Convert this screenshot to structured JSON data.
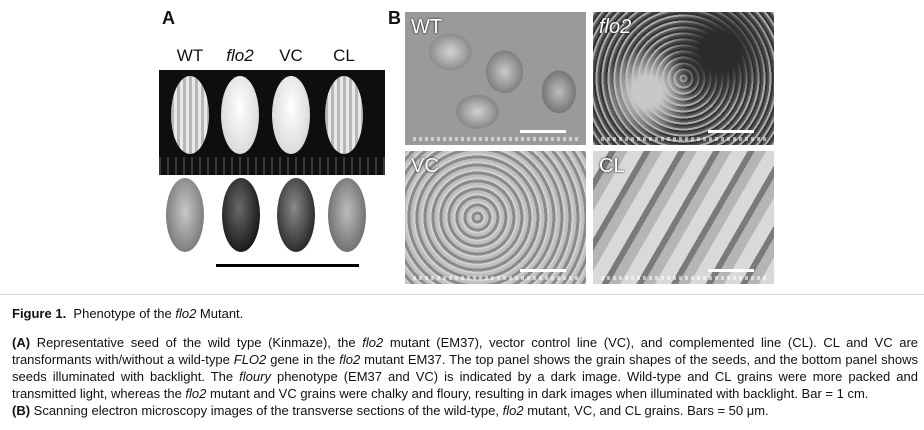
{
  "panel_a": {
    "letter": "A",
    "column_labels": [
      "WT",
      "flo2",
      "VC",
      "CL"
    ]
  },
  "panel_b": {
    "letter": "B",
    "image_labels": [
      "WT",
      "flo2",
      "VC",
      "CL"
    ]
  },
  "figure": {
    "title_prefix": "Figure 1.",
    "title_text": "Phenotype of the ",
    "title_italic": "flo2",
    "title_suffix": " Mutant."
  },
  "caption_a": {
    "label": "(A)",
    "s1": " Representative seed of the wild type (Kinmaze), the ",
    "s1_it": "flo2",
    "s2": " mutant (EM37), vector control line (VC), and complemented line (CL). CL and VC are transformants with/without a wild-type ",
    "s2_it": "FLO2",
    "s3": " gene in the ",
    "s3_it": "flo2",
    "s4": " mutant EM37. The top panel shows the grain shapes of the seeds, and the bottom panel shows seeds illuminated with backlight. The ",
    "s4_it": "floury",
    "s5": " phenotype (EM37 and VC) is indicated by a dark image. Wild-type and CL grains were more packed and transmitted light, whereas the ",
    "s5_it": "flo2",
    "s6": " mutant and VC grains were chalky and floury, resulting in dark images when illuminated with backlight. Bar = 1 cm."
  },
  "caption_b": {
    "label": "(B)",
    "s1": " Scanning electron microscopy images of the transverse sections of the wild-type, ",
    "s1_it": "flo2",
    "s2": " mutant, VC, and CL grains. Bars = 50 μm."
  }
}
